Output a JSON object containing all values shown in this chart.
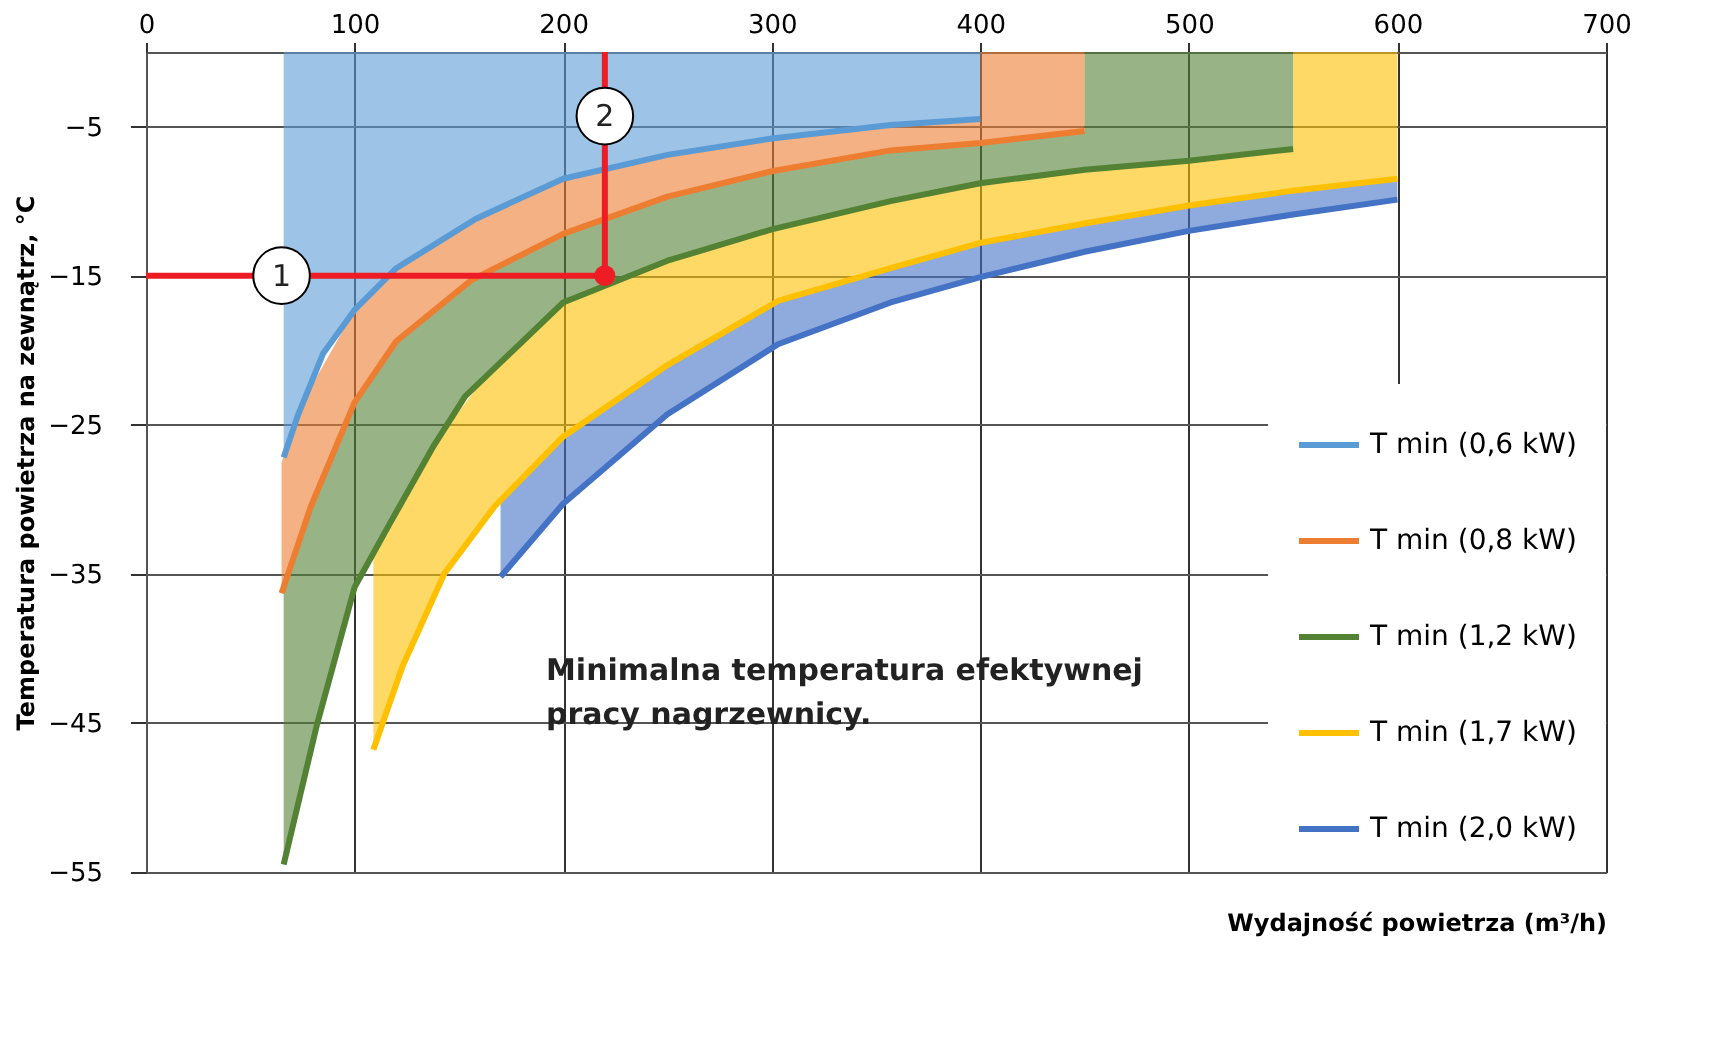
{
  "chart_data": {
    "type": "line",
    "xlabel": "Wydajność powietrza (m³/h)",
    "ylabel": "Temperatura powietrza na zewnątrz, °C",
    "xlim": [
      0,
      700
    ],
    "xticks": [
      0,
      100,
      200,
      300,
      400,
      500,
      600,
      700
    ],
    "ylim": [
      -55,
      0
    ],
    "yticks": [
      -5,
      -15,
      -25,
      -35,
      -45,
      -55
    ],
    "grid": true,
    "legend": "bottom right",
    "line_style": "solid",
    "marker": "none",
    "series": [
      {
        "name": "T min (0,6 kW)",
        "color": "#5b9bd5",
        "x": [
          66,
          73,
          85,
          100,
          120,
          158,
          200,
          250,
          300,
          357,
          400
        ],
        "values": [
          -27.2,
          -24.3,
          -20.2,
          -17.3,
          -14.5,
          -11.2,
          -8.5,
          -6.9,
          -5.8,
          -4.9,
          -4.5
        ],
        "lower": [
          -27.2,
          -24.3,
          -20.2,
          -17.3,
          -14.5,
          -11.2,
          -8.5,
          -6.9,
          -5.8,
          -4.9,
          -4.5
        ],
        "upper": [
          0,
          0,
          0,
          0,
          0,
          0,
          0,
          0,
          0,
          0,
          0
        ]
      },
      {
        "name": "T min (0,8 kW)",
        "color": "#ed7d31",
        "x": [
          65,
          79,
          100,
          120,
          156,
          200,
          250,
          300,
          357,
          400,
          400,
          450
        ],
        "values": [
          -36.3,
          -30.5,
          -23.5,
          -19.4,
          -15.3,
          -12.2,
          -9.7,
          -8.0,
          -6.6,
          -6.1,
          -6.1,
          -5.3
        ],
        "lower": [
          -36.3,
          -30.5,
          -23.5,
          -19.4,
          -15.3,
          -12.2,
          -9.7,
          -8.0,
          -6.6,
          -6.1,
          -6.1,
          -5.3
        ],
        "upper": [
          -27.5,
          -22.5,
          -17.3,
          -14.5,
          -11.4,
          -8.5,
          -6.9,
          -5.8,
          -4.9,
          -4.5,
          0,
          0
        ]
      },
      {
        "name": "T min (1,2 kW)",
        "color": "#548235",
        "x": [
          66,
          82,
          100,
          117,
          138,
          153,
          200,
          250,
          300,
          357,
          400,
          450,
          450,
          500,
          550
        ],
        "values": [
          -54.5,
          -45.1,
          -35.9,
          -31.6,
          -26.4,
          -23.1,
          -16.8,
          -14.0,
          -11.9,
          -10.0,
          -8.8,
          -7.9,
          -7.9,
          -7.3,
          -6.5
        ],
        "lower": [
          -54.5,
          -45.1,
          -35.9,
          -31.6,
          -26.4,
          -23.1,
          -16.8,
          -14.0,
          -11.9,
          -10.0,
          -8.8,
          -7.9,
          -7.9,
          -7.3,
          -6.5
        ],
        "upper": [
          -36.3,
          -29.5,
          -23.5,
          -20.0,
          -17.2,
          -15.6,
          -12.2,
          -9.7,
          -8.0,
          -6.6,
          -6.1,
          -5.3,
          0,
          0,
          0
        ]
      },
      {
        "name": "T min (1,7 kW)",
        "color": "#ffc000",
        "x": [
          109,
          123,
          143,
          167,
          200,
          250,
          303,
          357,
          400,
          450,
          500,
          550,
          550,
          600
        ],
        "values": [
          -46.8,
          -41.2,
          -35.0,
          -30.5,
          -25.8,
          -21.0,
          -16.7,
          -14.5,
          -12.8,
          -11.5,
          -10.3,
          -9.3,
          -9.3,
          -8.5
        ],
        "lower": [
          -46.8,
          -41.2,
          -35.0,
          -30.5,
          -25.8,
          -21.0,
          -16.7,
          -14.5,
          -12.8,
          -11.5,
          -10.3,
          -9.3,
          -9.3,
          -8.5
        ],
        "upper": [
          -33.6,
          -30.3,
          -25.4,
          -21.0,
          -16.8,
          -14.0,
          -11.8,
          -10.0,
          -8.8,
          -7.9,
          -7.3,
          -6.5,
          0,
          0
        ]
      },
      {
        "name": "T min (2,0 kW)",
        "color": "#4472c4",
        "x": [
          170,
          200,
          250,
          303,
          357,
          400,
          450,
          500,
          550,
          600
        ],
        "values": [
          -35.2,
          -30.3,
          -24.3,
          -19.6,
          -16.8,
          -15.1,
          -13.4,
          -12.0,
          -10.9,
          -9.9
        ],
        "lower": [
          -35.2,
          -30.3,
          -24.3,
          -19.6,
          -16.8,
          -15.1,
          -13.4,
          -12.0,
          -10.9,
          -9.9
        ],
        "upper": [
          -30.1,
          -25.8,
          -21.0,
          -16.7,
          -14.5,
          -12.8,
          -11.5,
          -10.3,
          -9.3,
          -8.5
        ]
      },
      {
        "type": "line",
        "color": "#ee1c25",
        "x": [
          0,
          220,
          220
        ],
        "values": [
          -15,
          -15,
          0
        ]
      },
      {
        "type": "scatter",
        "color": "#ee1c25",
        "marker": "circle",
        "x": [
          220
        ],
        "values": [
          -15
        ]
      }
    ],
    "annotations": [
      {
        "text": "1",
        "x": 65,
        "y": -15
      },
      {
        "text": "2",
        "x": 220,
        "y": -4.3
      },
      "Minimalna temperatura efektywnej\npracy nagrzewnicy."
    ]
  }
}
